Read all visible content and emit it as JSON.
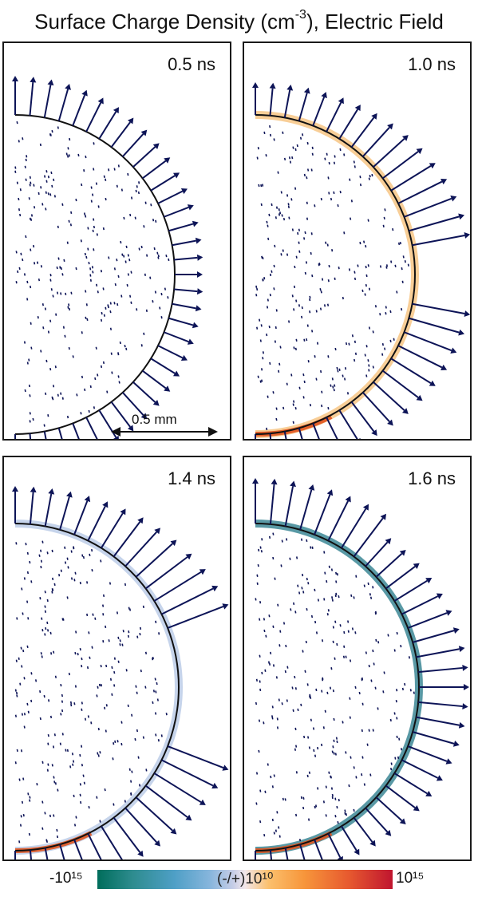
{
  "title": {
    "text": "Surface Charge Density (cm",
    "sup": "-3",
    "after": "), Electric Field"
  },
  "panels": [
    {
      "id": "p1",
      "time": "0.5 ns",
      "scale_label": "0.5 mm",
      "arrow_len": 0.55,
      "charge_color": null,
      "charge_strength": 0.0
    },
    {
      "id": "p2",
      "time": "1.0 ns",
      "arrow_len": 0.85,
      "charge_color": "#f2a23a",
      "charge_strength": 0.35
    },
    {
      "id": "p3",
      "time": "1.4 ns",
      "arrow_len": 1.0,
      "charge_color": "#a8bde0",
      "charge_strength": 0.6
    },
    {
      "id": "p4",
      "time": "1.6 ns",
      "arrow_len": 0.7,
      "charge_color": "#2f7f8e",
      "charge_strength": 0.9
    }
  ],
  "colorbar": {
    "min_label": "-10¹⁵",
    "mid_label": "(-/+)10¹⁰",
    "max_label": "10¹⁵",
    "colors": [
      "#006d5b",
      "#4e9fc6",
      "#c6cde7",
      "#f7963b",
      "#c0152f"
    ]
  },
  "arrow_color": "#0d1457"
}
